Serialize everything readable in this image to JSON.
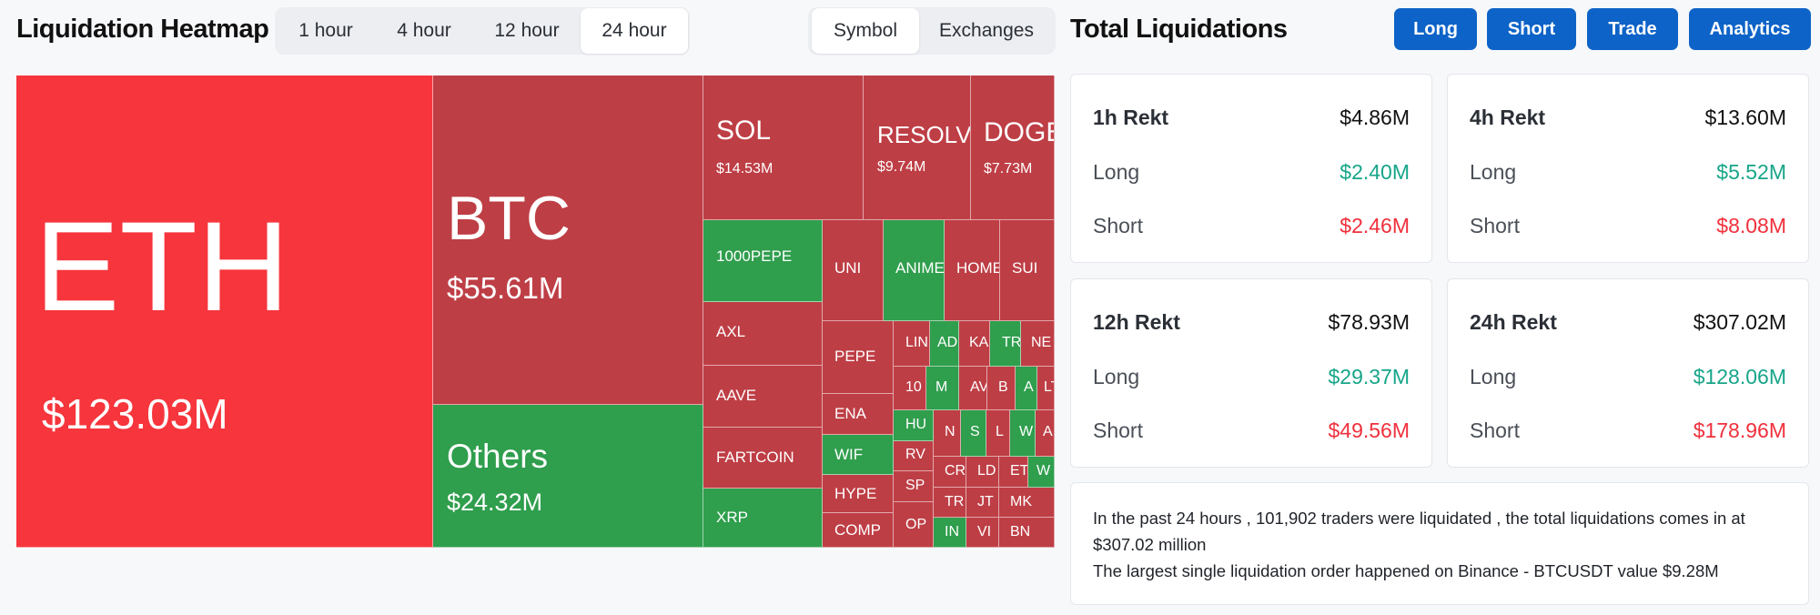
{
  "header": {
    "title": "Liquidation Heatmap",
    "time_tabs": [
      "1 hour",
      "4 hour",
      "12 hour",
      "24 hour"
    ],
    "active_time_tab": "24 hour",
    "view_tabs": [
      "Symbol",
      "Exchanges"
    ],
    "active_view_tab": "Symbol",
    "right_title": "Total Liquidations",
    "buttons": [
      "Long",
      "Short",
      "Trade",
      "Analytics"
    ]
  },
  "colors": {
    "red": "#be3e45",
    "green": "#2f9e4d",
    "bright_red": "#f7353c",
    "button_blue": "#0d63c7"
  },
  "heatmap": {
    "eth": {
      "symbol": "ETH",
      "value": "$123.03M"
    },
    "btc": {
      "symbol": "BTC",
      "value": "$55.61M"
    },
    "others": {
      "symbol": "Others",
      "value": "$24.32M"
    },
    "sol": {
      "symbol": "SOL",
      "value": "$14.53M"
    },
    "resolv": {
      "symbol": "RESOLV",
      "value": "$9.74M"
    },
    "doge": {
      "symbol": "DOGE",
      "value": "$7.73M"
    },
    "small": {
      "pepe1000": "1000PEPE",
      "axl": "AXL",
      "aave": "AAVE",
      "fartcoin": "FARTCOIN",
      "xrp": "XRP",
      "uni": "UNI",
      "anime": "ANIME",
      "home": "HOME",
      "sui": "SUI",
      "pepe": "PEPE",
      "ena": "ENA",
      "wif": "WIF",
      "hype": "HYPE",
      "comp": "COMP",
      "lin": "LIN",
      "ad": "AD",
      "ka": "KA",
      "tr": "TR",
      "ne": "NE",
      "c10": "10",
      "m": "M",
      "av": "AV",
      "b": "B",
      "a": "A",
      "lt": "LT",
      "hu": "HU",
      "n": "N",
      "s": "S",
      "l": "L",
      "w": "W",
      "a2": "A",
      "rv": "RV",
      "cr": "CR",
      "ld": "LD",
      "et": "ET",
      "w2": "W",
      "sp": "SP",
      "tr2": "TR",
      "jt": "JT",
      "mk": "MK",
      "op": "OP",
      "in": "IN",
      "vi": "VI",
      "bn": "BN"
    }
  },
  "stats": {
    "h1": {
      "title": "1h Rekt",
      "total": "$4.86M",
      "long_label": "Long",
      "long": "$2.40M",
      "short_label": "Short",
      "short": "$2.46M"
    },
    "h4": {
      "title": "4h Rekt",
      "total": "$13.60M",
      "long_label": "Long",
      "long": "$5.52M",
      "short_label": "Short",
      "short": "$8.08M"
    },
    "h12": {
      "title": "12h Rekt",
      "total": "$78.93M",
      "long_label": "Long",
      "long": "$29.37M",
      "short_label": "Short",
      "short": "$49.56M"
    },
    "h24": {
      "title": "24h Rekt",
      "total": "$307.02M",
      "long_label": "Long",
      "long": "$128.06M",
      "short_label": "Short",
      "short": "$178.96M"
    }
  },
  "summary": {
    "line1": "In the past 24 hours , 101,902 traders were liquidated , the total liquidations comes in at $307.02 million",
    "line2": "The largest single liquidation order happened on Binance - BTCUSDT value $9.28M"
  }
}
